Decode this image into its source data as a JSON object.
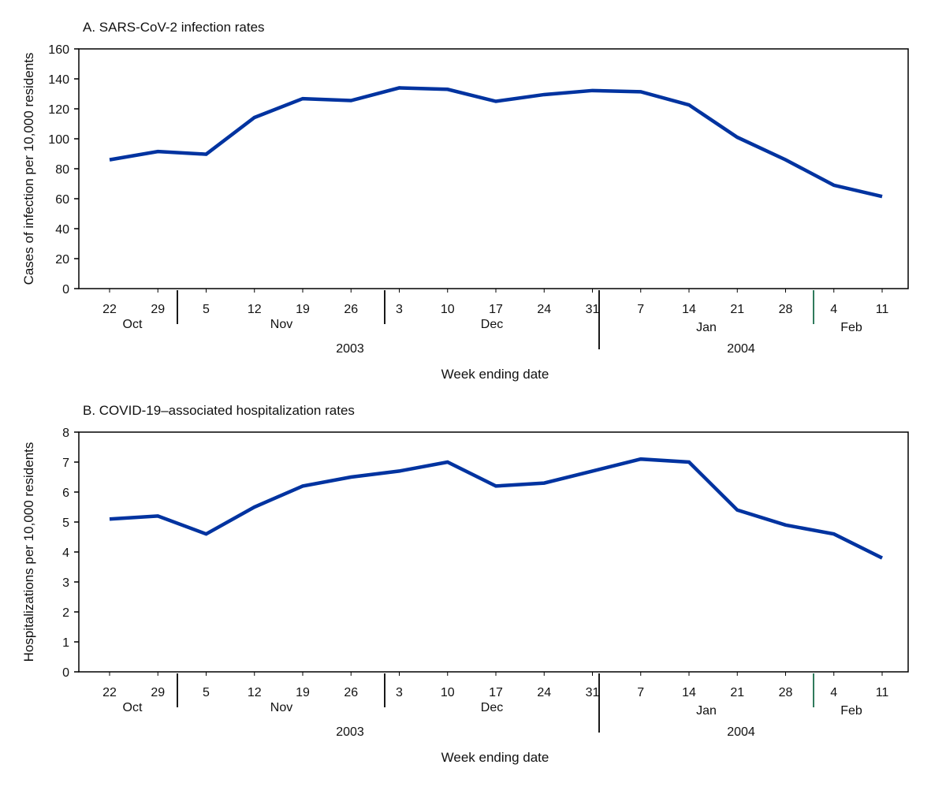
{
  "chart_data": [
    {
      "type": "line",
      "title": "A. SARS-CoV-2 infection rates",
      "xlabel": "Week ending date",
      "ylabel": "Cases of infection per 10,000 residents",
      "ylim": [
        0,
        160
      ],
      "yticks": [
        0,
        20,
        40,
        60,
        80,
        100,
        120,
        140,
        160
      ],
      "categories": [
        "22",
        "29",
        "5",
        "12",
        "19",
        "26",
        "3",
        "10",
        "17",
        "24",
        "31",
        "7",
        "14",
        "21",
        "28",
        "4",
        "11"
      ],
      "months": [
        "Oct",
        "Nov",
        "Dec",
        "Jan",
        "Feb"
      ],
      "years": [
        "2003",
        "2004"
      ],
      "grid": false,
      "line_color": "#0033a0",
      "series": [
        {
          "values": [
            86,
            91.5,
            89.7,
            114.2,
            126.8,
            125.5,
            134,
            133,
            125,
            129.5,
            132.2,
            131.4,
            122.6,
            101,
            86,
            69,
            61.5
          ]
        }
      ]
    },
    {
      "type": "line",
      "title": "B. COVID-19–associated hospitalization rates",
      "xlabel": "Week ending date",
      "ylabel": "Hospitalizations per 10,000 residents",
      "ylim": [
        0,
        8
      ],
      "yticks": [
        0,
        1,
        2,
        3,
        4,
        5,
        6,
        7,
        8
      ],
      "categories": [
        "22",
        "29",
        "5",
        "12",
        "19",
        "26",
        "3",
        "10",
        "17",
        "24",
        "31",
        "7",
        "14",
        "21",
        "28",
        "4",
        "11"
      ],
      "months": [
        "Oct",
        "Nov",
        "Dec",
        "Jan",
        "Feb"
      ],
      "years": [
        "2003",
        "2004"
      ],
      "grid": false,
      "line_color": "#0033a0",
      "series": [
        {
          "values": [
            5.1,
            5.2,
            4.6,
            5.5,
            6.2,
            6.5,
            6.7,
            7.0,
            6.2,
            6.3,
            6.7,
            7.1,
            7.0,
            5.4,
            4.9,
            4.6,
            3.8
          ]
        }
      ]
    }
  ]
}
